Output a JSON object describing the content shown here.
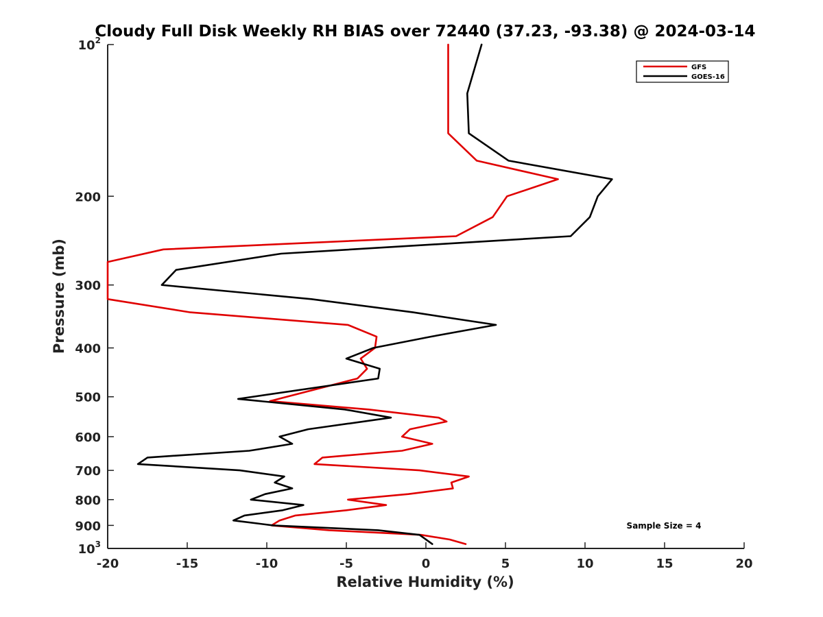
{
  "chart_data": {
    "type": "line",
    "title": "Cloudy Full Disk Weekly RH BIAS over 72440 (37.23, -93.38) @ 2024-03-14",
    "xlabel": "Relative Humidity (%)",
    "ylabel": "Pressure (mb)",
    "xlim": [
      -20,
      20
    ],
    "ylim": [
      100,
      1000
    ],
    "y_scale": "log",
    "y_reversed": true,
    "grid": false,
    "legend_position": "top-right",
    "x_ticks": [
      -20,
      -15,
      -10,
      -5,
      0,
      5,
      10,
      15,
      20
    ],
    "x_tick_labels": [
      "-20",
      "-15",
      "-10",
      "-5",
      "0",
      "5",
      "10",
      "15",
      "20"
    ],
    "y_ticks": [
      {
        "value": 100,
        "base": "10",
        "exp": "2",
        "label": ""
      },
      {
        "value": 200,
        "base": "",
        "exp": "",
        "label": "200"
      },
      {
        "value": 300,
        "base": "",
        "exp": "",
        "label": "300"
      },
      {
        "value": 400,
        "base": "",
        "exp": "",
        "label": "400"
      },
      {
        "value": 500,
        "base": "",
        "exp": "",
        "label": "500"
      },
      {
        "value": 600,
        "base": "",
        "exp": "",
        "label": "600"
      },
      {
        "value": 700,
        "base": "",
        "exp": "",
        "label": "700"
      },
      {
        "value": 800,
        "base": "",
        "exp": "",
        "label": "800"
      },
      {
        "value": 900,
        "base": "",
        "exp": "",
        "label": "900"
      },
      {
        "value": 1000,
        "base": "10",
        "exp": "3",
        "label": ""
      }
    ],
    "annotation": "Sample Size = 4",
    "series": [
      {
        "name": "GFS",
        "color": "#e00000",
        "points": [
          [
            1.4,
            100
          ],
          [
            1.4,
            125
          ],
          [
            1.4,
            150
          ],
          [
            3.2,
            170
          ],
          [
            8.3,
            185
          ],
          [
            5.1,
            200
          ],
          [
            4.2,
            220
          ],
          [
            1.9,
            240
          ],
          [
            -16.5,
            255
          ],
          [
            -20,
            270
          ],
          [
            -20,
            320
          ],
          [
            -14.8,
            340
          ],
          [
            -4.9,
            360
          ],
          [
            -3.1,
            380
          ],
          [
            -3.2,
            400
          ],
          [
            -4.1,
            420
          ],
          [
            -3.7,
            440
          ],
          [
            -4.3,
            460
          ],
          [
            -9.8,
            510
          ],
          [
            -3.6,
            530
          ],
          [
            0.8,
            550
          ],
          [
            1.3,
            560
          ],
          [
            -1.0,
            580
          ],
          [
            -1.5,
            600
          ],
          [
            0.4,
            620
          ],
          [
            -1.5,
            640
          ],
          [
            -6.5,
            660
          ],
          [
            -7.0,
            680
          ],
          [
            -0.4,
            700
          ],
          [
            2.7,
            720
          ],
          [
            1.6,
            740
          ],
          [
            1.7,
            760
          ],
          [
            -1.1,
            780
          ],
          [
            -4.9,
            800
          ],
          [
            -2.5,
            820
          ],
          [
            -5.0,
            840
          ],
          [
            -8.2,
            860
          ],
          [
            -9.2,
            880
          ],
          [
            -9.7,
            900
          ],
          [
            -6.1,
            920
          ],
          [
            -0.3,
            940
          ],
          [
            1.5,
            960
          ],
          [
            2.5,
            980
          ]
        ]
      },
      {
        "name": "GOES-16",
        "color": "#000000",
        "points": [
          [
            3.5,
            100
          ],
          [
            2.6,
            125
          ],
          [
            2.7,
            150
          ],
          [
            5.2,
            170
          ],
          [
            11.7,
            185
          ],
          [
            10.8,
            200
          ],
          [
            10.3,
            220
          ],
          [
            9.1,
            240
          ],
          [
            -9.1,
            260
          ],
          [
            -15.7,
            280
          ],
          [
            -16.6,
            300
          ],
          [
            -7.2,
            320
          ],
          [
            -0.8,
            340
          ],
          [
            4.4,
            360
          ],
          [
            0.3,
            380
          ],
          [
            -3.3,
            400
          ],
          [
            -5.0,
            420
          ],
          [
            -2.9,
            440
          ],
          [
            -3.0,
            460
          ],
          [
            -11.8,
            505
          ],
          [
            -5.1,
            530
          ],
          [
            -2.2,
            550
          ],
          [
            -7.4,
            580
          ],
          [
            -9.2,
            600
          ],
          [
            -8.4,
            620
          ],
          [
            -11.1,
            640
          ],
          [
            -17.5,
            660
          ],
          [
            -18.1,
            680
          ],
          [
            -11.7,
            700
          ],
          [
            -8.9,
            720
          ],
          [
            -9.5,
            740
          ],
          [
            -8.4,
            760
          ],
          [
            -10.1,
            780
          ],
          [
            -11.0,
            800
          ],
          [
            -7.7,
            820
          ],
          [
            -9.0,
            840
          ],
          [
            -11.4,
            860
          ],
          [
            -12.1,
            880
          ],
          [
            -9.6,
            900
          ],
          [
            -3.0,
            920
          ],
          [
            -0.4,
            940
          ],
          [
            0.4,
            980
          ]
        ]
      }
    ]
  }
}
